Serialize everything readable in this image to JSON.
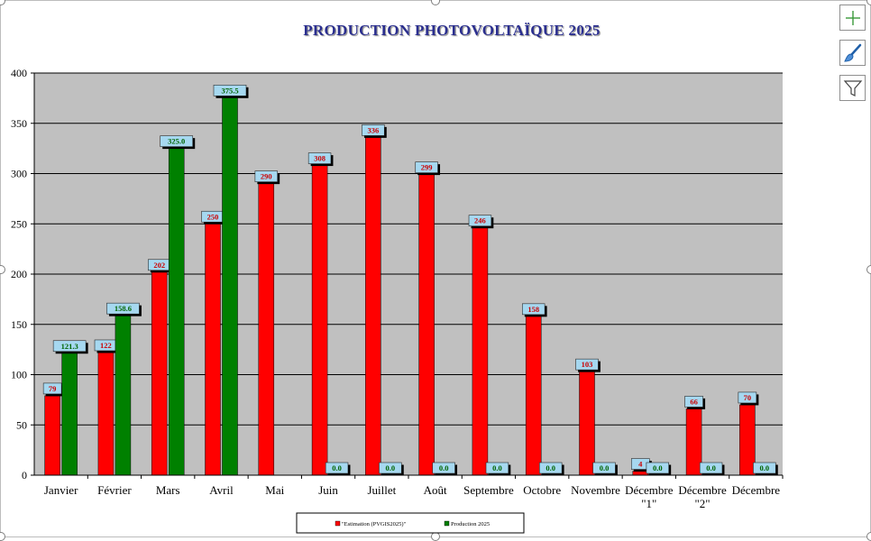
{
  "chart_data": {
    "type": "bar",
    "title": "PRODUCTION PHOTOVOLTAÏQUE 2025",
    "categories": [
      "Janvier",
      "Février",
      "Mars",
      "Avril",
      "Mai",
      "Juin",
      "Juillet",
      "Août",
      "Septembre",
      "Octobre",
      "Novembre",
      "Décembre \"1\"",
      "Décembre \"2\"",
      "Décembre"
    ],
    "series": [
      {
        "name": "\"Estimation (PVGIS2025)\"",
        "color": "#ff0000",
        "values": [
          79,
          122,
          202,
          250,
          290,
          308,
          336,
          299,
          246,
          158,
          103,
          4,
          66,
          70
        ],
        "labels": [
          "79",
          "122",
          "202",
          "250",
          "290",
          "308",
          "336",
          "299",
          "246",
          "158",
          "103",
          "4",
          "66",
          "70"
        ]
      },
      {
        "name": "Production 2025",
        "color": "#008000",
        "values": [
          121.3,
          158.6,
          325.0,
          375.5,
          0,
          0,
          0,
          0,
          0,
          0,
          0,
          0,
          0,
          0
        ],
        "labels": [
          "121.3",
          "158.6",
          "325.0",
          "375.5",
          "",
          "0.0",
          "0.0",
          "0.0",
          "0.0",
          "0.0",
          "0.0",
          "0.0",
          "0.0",
          "0.0"
        ]
      }
    ],
    "yticks": [
      "0",
      "50",
      "100",
      "150",
      "200",
      "250",
      "300",
      "350",
      "400"
    ],
    "ylim": [
      0,
      400
    ],
    "grid": true,
    "legend_position": "bottom",
    "colors": {
      "plot_background": "#c0c0c0",
      "title": "#2b2f8f",
      "label_box": "#a6d8f0",
      "estimation_label_text": "#cc0000",
      "production_label_text": "#006400"
    }
  },
  "tools": {
    "icons": [
      "plus-icon",
      "brush-icon",
      "filter-icon"
    ]
  }
}
